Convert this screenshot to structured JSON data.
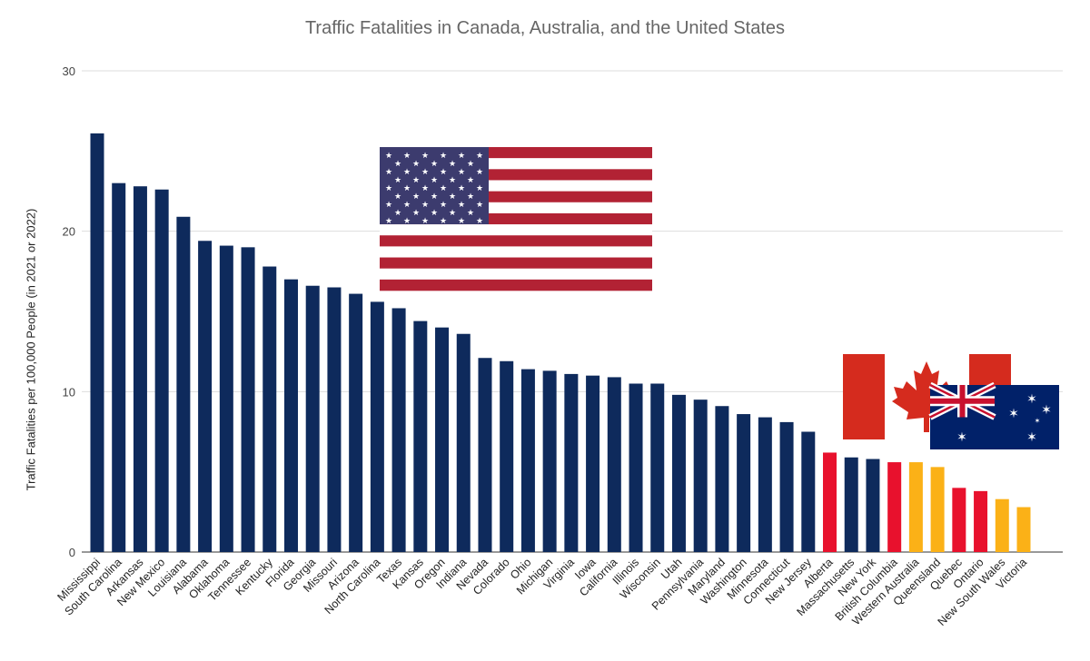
{
  "chart_data": {
    "type": "bar",
    "title": "Traffic Fatalities in Canada, Australia, and the United States",
    "xlabel": "",
    "ylabel": "Traffic Fatalities per 100,000 People (in 2021 or 2022)",
    "ylim": [
      0,
      30
    ],
    "yticks": [
      0,
      10,
      20,
      30
    ],
    "grid": true,
    "colors": {
      "United States": "#0e2a5c",
      "Canada": "#e8112d",
      "Australia": "#fbb117"
    },
    "flags": [
      "United States",
      "Canada",
      "Australia"
    ],
    "categories": [
      "Mississippi",
      "South Carolina",
      "Arkansas",
      "New Mexico",
      "Louisiana",
      "Alabama",
      "Oklahoma",
      "Tennessee",
      "Kentucky",
      "Florida",
      "Georgia",
      "Missouri",
      "Arizona",
      "North Carolina",
      "Texas",
      "Kansas",
      "Oregon",
      "Indiana",
      "Nevada",
      "Colorado",
      "Ohio",
      "Michigan",
      "Virginia",
      "Iowa",
      "California",
      "Illinois",
      "Wisconsin",
      "Utah",
      "Pennsylvania",
      "Maryland",
      "Washington",
      "Minnesota",
      "Connecticut",
      "New Jersey",
      "Alberta",
      "Massachusetts",
      "New York",
      "British Columbia",
      "Western Australia",
      "Queensland",
      "Quebec",
      "Ontario",
      "New South Wales",
      "Victoria"
    ],
    "values": [
      26.1,
      23.0,
      22.8,
      22.6,
      20.9,
      19.4,
      19.1,
      19.0,
      17.8,
      17.0,
      16.6,
      16.5,
      16.1,
      15.6,
      15.2,
      14.4,
      14.0,
      13.6,
      12.1,
      11.9,
      11.4,
      11.3,
      11.1,
      11.0,
      10.9,
      10.5,
      10.5,
      9.8,
      9.5,
      9.1,
      8.6,
      8.4,
      8.1,
      7.5,
      6.2,
      5.9,
      5.8,
      5.6,
      5.6,
      5.3,
      4.0,
      3.8,
      3.3,
      2.8
    ],
    "country": [
      "United States",
      "United States",
      "United States",
      "United States",
      "United States",
      "United States",
      "United States",
      "United States",
      "United States",
      "United States",
      "United States",
      "United States",
      "United States",
      "United States",
      "United States",
      "United States",
      "United States",
      "United States",
      "United States",
      "United States",
      "United States",
      "United States",
      "United States",
      "United States",
      "United States",
      "United States",
      "United States",
      "United States",
      "United States",
      "United States",
      "United States",
      "United States",
      "United States",
      "United States",
      "Canada",
      "United States",
      "United States",
      "Canada",
      "Australia",
      "Australia",
      "Canada",
      "Canada",
      "Australia",
      "Australia"
    ]
  }
}
